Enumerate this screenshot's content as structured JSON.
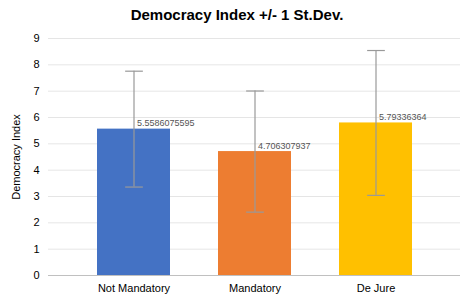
{
  "chart_data": {
    "type": "bar",
    "title": "Democracy Index +/- 1 St.Dev.",
    "ylabel": "Democracy Index",
    "categories": [
      "Not Mandatory",
      "Mandatory",
      "De Jure"
    ],
    "values": [
      5.5586075595,
      4.706307937,
      5.79336364
    ],
    "errors": [
      2.2,
      2.3,
      2.75
    ],
    "colors": [
      "#4472C4",
      "#ED7D31",
      "#FFC000"
    ],
    "ylim": [
      0,
      9
    ],
    "yticks": [
      0,
      1,
      2,
      3,
      4,
      5,
      6,
      7,
      8,
      9
    ],
    "grid": true,
    "data_labels": true
  }
}
